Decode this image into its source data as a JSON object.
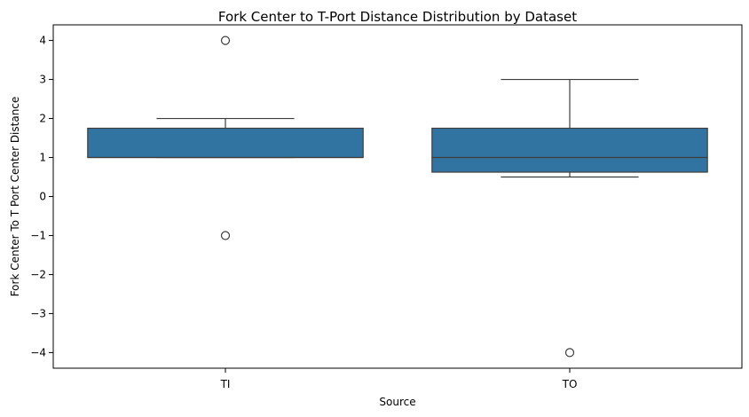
{
  "chart_data": {
    "type": "box",
    "title": "Fork Center to T-Port Distance Distribution by Dataset",
    "xlabel": "Source",
    "ylabel": "Fork Center To T Port Center Distance",
    "categories": [
      "TI",
      "TO"
    ],
    "ylim": [
      -4.4,
      4.4
    ],
    "yticks": [
      -4,
      -3,
      -2,
      -1,
      0,
      1,
      2,
      3,
      4
    ],
    "grid": false,
    "box_color": "#3274a1",
    "line_color": "#3d3d3d",
    "boxes": [
      {
        "category": "TI",
        "whisker_low": 1.0,
        "q1": 1.0,
        "median": 1.0,
        "q3": 1.75,
        "whisker_high": 2.0,
        "outliers": [
          4.0,
          -1.0
        ]
      },
      {
        "category": "TO",
        "whisker_low": 0.5,
        "q1": 0.625,
        "median": 1.0,
        "q3": 1.75,
        "whisker_high": 3.0,
        "outliers": [
          -4.0
        ]
      }
    ]
  }
}
